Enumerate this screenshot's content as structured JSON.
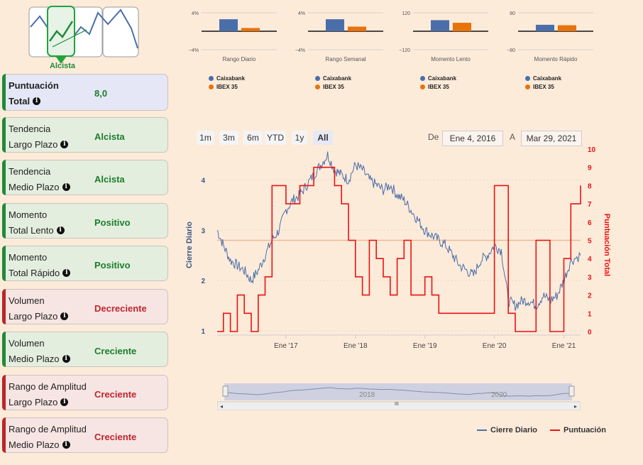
{
  "trend_badge": {
    "label": "Alcista"
  },
  "cards": [
    {
      "line1": "Puntuación",
      "line2": "Total",
      "value": "8,0",
      "kind": "blue"
    },
    {
      "line1": "Tendencia",
      "line2": "Largo Plazo",
      "value": "Alcista",
      "kind": "green"
    },
    {
      "line1": "Tendencia",
      "line2": "Medio Plazo",
      "value": "Alcista",
      "kind": "green"
    },
    {
      "line1": "Momento",
      "line2": "Total Lento",
      "value": "Positivo",
      "kind": "green"
    },
    {
      "line1": "Momento",
      "line2": "Total Rápido",
      "value": "Positivo",
      "kind": "green"
    },
    {
      "line1": "Volumen",
      "line2": "Largo Plazo",
      "value": "Decreciente",
      "kind": "red"
    },
    {
      "line1": "Volumen",
      "line2": "Medio Plazo",
      "value": "Creciente",
      "kind": "green"
    },
    {
      "line1": "Rango de Amplitud",
      "line2": "Largo Plazo",
      "value": "Creciente",
      "kind": "red"
    },
    {
      "line1": "Rango de Amplitud",
      "line2": "Medio Plazo",
      "value": "Creciente",
      "kind": "red"
    }
  ],
  "colors": {
    "caixabank": "#4a6ea9",
    "ibex": "#e8720c",
    "score": "#ee1111",
    "green_bar": "#1f8a3a",
    "red_bar": "#b8272a",
    "green_text": "#1a7f2c",
    "red_text": "#c0262b"
  },
  "range_buttons": [
    "1m",
    "3m",
    "6m",
    "YTD",
    "1y",
    "All"
  ],
  "date_range": {
    "from_label": "De",
    "from": "Ene 4, 2016",
    "to_label": "A",
    "to": "Mar 29, 2021"
  },
  "navigator": {
    "labels": [
      "2018",
      "2020"
    ],
    "grip": "III"
  },
  "chart_data": [
    {
      "type": "bar",
      "title": "Rango Diario",
      "ymax_label": "4%",
      "ymin_label": "−4%",
      "ylim": [
        -4,
        4
      ],
      "series": [
        {
          "name": "Caixabank",
          "values": [
            2.6
          ]
        },
        {
          "name": "IBEX 35",
          "values": [
            0.7
          ]
        }
      ]
    },
    {
      "type": "bar",
      "title": "Rango Semanal",
      "ymax_label": "4%",
      "ymin_label": "−4%",
      "ylim": [
        -4,
        4
      ],
      "series": [
        {
          "name": "Caixabank",
          "values": [
            2.6
          ]
        },
        {
          "name": "IBEX 35",
          "values": [
            1.0
          ]
        }
      ]
    },
    {
      "type": "bar",
      "title": "Momento Lento",
      "ymax_label": "120",
      "ymin_label": "−120",
      "ylim": [
        -120,
        120
      ],
      "series": [
        {
          "name": "Caixabank",
          "values": [
            72
          ]
        },
        {
          "name": "IBEX 35",
          "values": [
            55
          ]
        }
      ]
    },
    {
      "type": "bar",
      "title": "Momento Rápido",
      "ymax_label": "80",
      "ymin_label": "−80",
      "ylim": [
        -80,
        80
      ],
      "series": [
        {
          "name": "Caixabank",
          "values": [
            28
          ]
        },
        {
          "name": "IBEX 35",
          "values": [
            26
          ]
        }
      ]
    },
    {
      "type": "line",
      "title": "",
      "x_tick_labels": [
        "Ene '17",
        "Ene '18",
        "Ene '19",
        "Ene '20",
        "Ene '21"
      ],
      "x_ticks": [
        2017.0,
        2018.0,
        2019.0,
        2020.0,
        2021.0
      ],
      "xlim": [
        2016.01,
        2021.24
      ],
      "ylabel": "Cierre Diario",
      "ylim": [
        1,
        4.5
      ],
      "yticks": [
        1,
        2,
        3,
        4
      ],
      "y2label": "Puntuación Total",
      "y2lim": [
        0,
        10
      ],
      "y2ticks": [
        0,
        1,
        2,
        3,
        4,
        5,
        6,
        7,
        8,
        9,
        10
      ],
      "reference_line_y": 2.8,
      "series": [
        {
          "name": "Cierre Diario",
          "axis": "left",
          "x": [
            2016.01,
            2016.1,
            2016.2,
            2016.3,
            2016.4,
            2016.5,
            2016.6,
            2016.7,
            2016.8,
            2016.9,
            2017.0,
            2017.1,
            2017.2,
            2017.3,
            2017.4,
            2017.5,
            2017.6,
            2017.7,
            2017.8,
            2017.9,
            2018.0,
            2018.1,
            2018.2,
            2018.3,
            2018.4,
            2018.5,
            2018.6,
            2018.7,
            2018.8,
            2018.9,
            2019.0,
            2019.1,
            2019.2,
            2019.3,
            2019.4,
            2019.5,
            2019.6,
            2019.7,
            2019.8,
            2019.9,
            2020.0,
            2020.1,
            2020.2,
            2020.3,
            2020.4,
            2020.5,
            2020.6,
            2020.7,
            2020.8,
            2020.9,
            2021.0,
            2021.1,
            2021.24
          ],
          "values": [
            3.0,
            2.7,
            2.4,
            2.3,
            2.2,
            2.0,
            2.2,
            2.5,
            2.8,
            3.0,
            3.4,
            3.6,
            3.7,
            3.9,
            4.1,
            4.3,
            4.5,
            4.2,
            4.1,
            4.0,
            4.3,
            4.2,
            4.0,
            3.9,
            3.8,
            3.9,
            3.7,
            3.6,
            3.4,
            3.2,
            3.0,
            2.9,
            2.8,
            2.7,
            2.5,
            2.3,
            2.2,
            2.1,
            2.4,
            2.5,
            2.7,
            2.6,
            1.6,
            1.5,
            1.6,
            1.6,
            1.5,
            1.7,
            1.6,
            1.7,
            2.0,
            2.4,
            2.5
          ]
        },
        {
          "name": "Puntuación",
          "axis": "right",
          "x": [
            2016.01,
            2016.1,
            2016.2,
            2016.3,
            2016.4,
            2016.5,
            2016.6,
            2016.7,
            2016.8,
            2016.9,
            2017.0,
            2017.1,
            2017.2,
            2017.3,
            2017.4,
            2017.5,
            2017.6,
            2017.7,
            2017.8,
            2017.9,
            2018.0,
            2018.1,
            2018.2,
            2018.3,
            2018.4,
            2018.5,
            2018.6,
            2018.7,
            2018.8,
            2018.9,
            2019.0,
            2019.1,
            2019.2,
            2019.3,
            2019.4,
            2019.5,
            2019.6,
            2019.7,
            2019.8,
            2019.9,
            2020.0,
            2020.1,
            2020.2,
            2020.3,
            2020.4,
            2020.5,
            2020.6,
            2020.7,
            2020.8,
            2020.9,
            2021.0,
            2021.1,
            2021.24
          ],
          "values": [
            0,
            1,
            0,
            2,
            1,
            0,
            2,
            3,
            8,
            8,
            7,
            7,
            8,
            8,
            9,
            9,
            9,
            8,
            7,
            5,
            3,
            2,
            5,
            4,
            3,
            2,
            4,
            5,
            2,
            2,
            3,
            2,
            1,
            1,
            1,
            1,
            1,
            1,
            1,
            1,
            8,
            8,
            1,
            0,
            0,
            0,
            5,
            5,
            0,
            0,
            4,
            7,
            8
          ]
        }
      ]
    }
  ],
  "legend_bottom": [
    {
      "name": "Cierre Diario"
    },
    {
      "name": "Puntuación"
    }
  ],
  "mini_legend": [
    {
      "name": "Caixabank"
    },
    {
      "name": "IBEX 35"
    }
  ]
}
